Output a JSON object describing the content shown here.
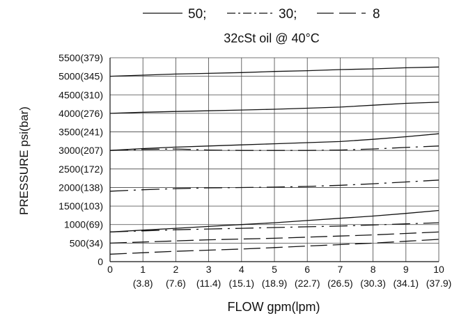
{
  "legend_text": {
    "s50": "50;",
    "s30": "30;",
    "s8": "8"
  },
  "subtitle": "32cSt  oil @ 40°C",
  "chart_data": {
    "type": "line",
    "subtitle": "32cSt  oil @ 40°C",
    "xlabel": "FLOW gpm(lpm)",
    "ylabel": "PRESSURE  psi(bar)",
    "xlim": [
      0,
      10
    ],
    "ylim": [
      0,
      5500
    ],
    "grid": true,
    "legend_position": "top",
    "x_ticks": [
      0,
      1,
      2,
      3,
      4,
      5,
      6,
      7,
      8,
      9,
      10
    ],
    "x_ticks_secondary": [
      "",
      "(3.8)",
      "(7.6)",
      "(11.4)",
      "(15.1)",
      "(18.9)",
      "(22.7)",
      "(26.5)",
      "(30.3)",
      "(34.1)",
      "(37.9)"
    ],
    "y_ticks": [
      0,
      500,
      1000,
      1500,
      2000,
      2500,
      3000,
      3500,
      4000,
      4500,
      5000,
      5500
    ],
    "y_tick_labels": [
      "0",
      "500(34)",
      "1000(69)",
      "1500(103)",
      "2000(138)",
      "2500(172)",
      "3000(207)",
      "3500(241)",
      "4000(276)",
      "4500(310)",
      "5000(345)",
      "5500(379)"
    ],
    "series": [
      {
        "name": "50",
        "style": "solid",
        "x": [
          0,
          1,
          2,
          3,
          4,
          5,
          6,
          7,
          8,
          9,
          10
        ],
        "values": [
          5000,
          5030,
          5060,
          5080,
          5100,
          5130,
          5150,
          5180,
          5200,
          5230,
          5250
        ]
      },
      {
        "name": "50",
        "style": "solid",
        "x": [
          0,
          1,
          2,
          3,
          4,
          5,
          6,
          7,
          8,
          9,
          10
        ],
        "values": [
          4000,
          4030,
          4050,
          4070,
          4090,
          4110,
          4140,
          4170,
          4220,
          4270,
          4300
        ]
      },
      {
        "name": "50",
        "style": "solid",
        "x": [
          0,
          1,
          2,
          3,
          4,
          5,
          6,
          7,
          8,
          9,
          10
        ],
        "values": [
          3000,
          3050,
          3090,
          3120,
          3150,
          3180,
          3210,
          3240,
          3300,
          3370,
          3450
        ]
      },
      {
        "name": "30",
        "style": "dashdot",
        "x": [
          0,
          1,
          2,
          3,
          4,
          5,
          6,
          7,
          8,
          9,
          10
        ],
        "values": [
          3000,
          3030,
          3040,
          3010,
          3000,
          3000,
          3000,
          3010,
          3040,
          3080,
          3120
        ]
      },
      {
        "name": "30",
        "style": "dashdot",
        "x": [
          0,
          1,
          2,
          3,
          4,
          5,
          6,
          7,
          8,
          9,
          10
        ],
        "values": [
          1900,
          1940,
          1970,
          1990,
          2000,
          2010,
          2030,
          2060,
          2100,
          2150,
          2200
        ]
      },
      {
        "name": "50",
        "style": "solid",
        "x": [
          0,
          1,
          2,
          3,
          4,
          5,
          6,
          7,
          8,
          9,
          10
        ],
        "values": [
          800,
          850,
          900,
          950,
          1000,
          1050,
          1110,
          1170,
          1230,
          1300,
          1380
        ]
      },
      {
        "name": "30",
        "style": "dashdot",
        "x": [
          0,
          1,
          2,
          3,
          4,
          5,
          6,
          7,
          8,
          9,
          10
        ],
        "values": [
          800,
          830,
          860,
          880,
          900,
          920,
          940,
          960,
          990,
          1020,
          1050
        ]
      },
      {
        "name": "8",
        "style": "dashed",
        "x": [
          0,
          1,
          2,
          3,
          4,
          5,
          6,
          7,
          8,
          9,
          10
        ],
        "values": [
          500,
          530,
          560,
          590,
          610,
          630,
          660,
          690,
          720,
          760,
          800
        ]
      },
      {
        "name": "8",
        "style": "dashed",
        "x": [
          0,
          1,
          2,
          3,
          4,
          5,
          6,
          7,
          8,
          9,
          10
        ],
        "values": [
          200,
          240,
          280,
          310,
          340,
          380,
          420,
          460,
          500,
          550,
          600
        ]
      }
    ]
  }
}
